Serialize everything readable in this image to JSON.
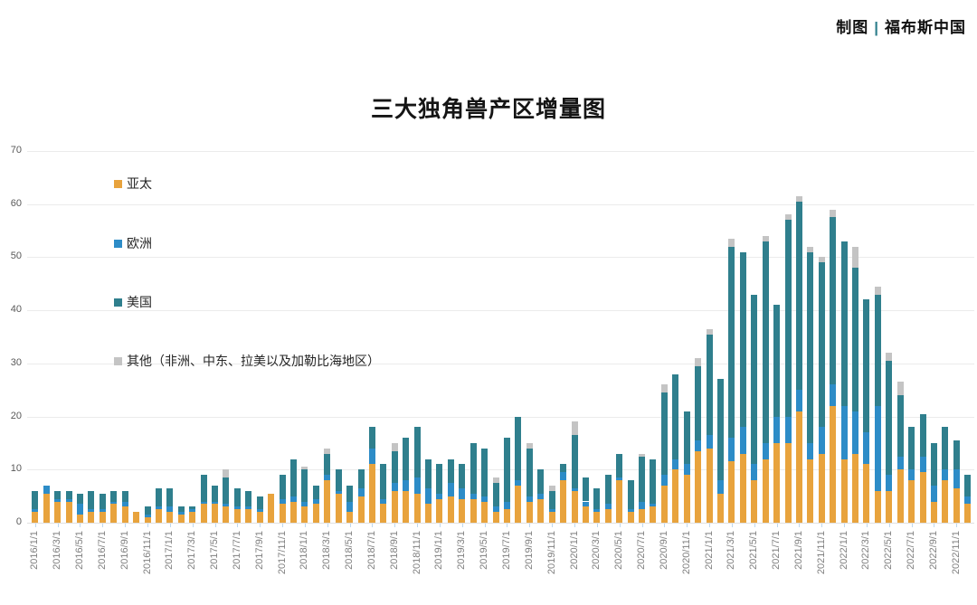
{
  "header": {
    "credit_prefix": "制图",
    "credit_separator": "|",
    "credit_brand": "福布斯中国",
    "separator_color": "#2F7F8D"
  },
  "title": "三大独角兽产区增量图",
  "chart_data": {
    "type": "bar",
    "stacked": true,
    "title": "三大独角兽产区增量图",
    "grid": true,
    "legend_position": "left-vertical",
    "ylim": [
      0,
      70
    ],
    "yticks": [
      0,
      10,
      20,
      30,
      40,
      50,
      60,
      70
    ],
    "x_ticks_every": 2,
    "x": [
      "2016/1/1",
      "2016/2/1",
      "2016/3/1",
      "2016/4/1",
      "2016/5/1",
      "2016/6/1",
      "2016/7/1",
      "2016/8/1",
      "2016/9/1",
      "2016/10/1",
      "2016/11/1",
      "2016/12/1",
      "2017/1/1",
      "2017/2/1",
      "2017/3/1",
      "2017/4/1",
      "2017/5/1",
      "2017/6/1",
      "2017/7/1",
      "2017/8/1",
      "2017/9/1",
      "2017/10/1",
      "2017/11/1",
      "2017/12/1",
      "2018/1/1",
      "2018/2/1",
      "2018/3/1",
      "2018/4/1",
      "2018/5/1",
      "2018/6/1",
      "2018/7/1",
      "2018/8/1",
      "2018/9/1",
      "2018/10/1",
      "2018/11/1",
      "2018/12/1",
      "2019/1/1",
      "2019/2/1",
      "2019/3/1",
      "2019/4/1",
      "2019/5/1",
      "2019/6/1",
      "2019/7/1",
      "2019/8/1",
      "2019/9/1",
      "2019/10/1",
      "2019/11/1",
      "2019/12/1",
      "2020/1/1",
      "2020/2/1",
      "2020/3/1",
      "2020/4/1",
      "2020/5/1",
      "2020/6/1",
      "2020/7/1",
      "2020/8/1",
      "2020/9/1",
      "2020/10/1",
      "2020/11/1",
      "2020/12/1",
      "2021/1/1",
      "2021/2/1",
      "2021/3/1",
      "2021/4/1",
      "2021/5/1",
      "2021/6/1",
      "2021/7/1",
      "2021/8/1",
      "2021/9/1",
      "2021/10/1",
      "2021/11/1",
      "2021/12/1",
      "2022/1/1",
      "2022/2/1",
      "2022/3/1",
      "2022/4/1",
      "2022/5/1",
      "2022/6/1",
      "2022/7/1",
      "2022/8/1",
      "2022/9/1",
      "2022/10/1",
      "2022/11/1",
      "2022/12/1"
    ],
    "series": [
      {
        "key": "asia-pacific",
        "name": "亚太",
        "color": "#E8A33D",
        "values": [
          2,
          5.5,
          4,
          4,
          1.5,
          2,
          2,
          3.5,
          3,
          2,
          1,
          2.5,
          2,
          1.5,
          2,
          3.5,
          3.5,
          3,
          2.5,
          2.5,
          2,
          5.5,
          3.5,
          4,
          3,
          3.5,
          8,
          5.5,
          2,
          5,
          11,
          3.5,
          6,
          6,
          5.5,
          3.5,
          4.5,
          5,
          4.5,
          4.5,
          4,
          2,
          2.5,
          7,
          4,
          4.5,
          2,
          8,
          6,
          3,
          2,
          2.5,
          8,
          2,
          2.5,
          3,
          7,
          10,
          9,
          13.5,
          14,
          5.5,
          11.5,
          13,
          8,
          12,
          15,
          15,
          21,
          12,
          13,
          22,
          12,
          13,
          11,
          6,
          6,
          10,
          8,
          9.5,
          4,
          8,
          6.5,
          3.5
        ]
      },
      {
        "key": "europe",
        "name": "欧洲",
        "color": "#2D8CC7",
        "values": [
          0.5,
          1.5,
          0.5,
          0.5,
          2,
          0.5,
          0.5,
          0.5,
          1,
          0,
          0.5,
          0.5,
          1,
          0.5,
          0.5,
          0.5,
          0.5,
          0.5,
          0.5,
          0.5,
          0.5,
          0,
          1,
          1,
          1,
          1,
          1,
          0.5,
          2,
          1.5,
          3,
          1,
          1.5,
          2,
          3,
          3,
          1,
          2.5,
          2,
          1,
          1,
          1,
          1.5,
          1,
          1,
          1,
          0.5,
          1.5,
          0.5,
          1,
          0.5,
          1,
          0.5,
          0.5,
          1.5,
          0.5,
          2,
          2,
          2,
          2,
          2.5,
          2.5,
          4.5,
          5,
          3,
          3,
          5,
          5,
          4,
          3,
          5,
          4,
          10,
          8,
          6,
          16,
          3,
          2.5,
          2,
          3,
          3,
          2,
          3.5,
          1.5
        ]
      },
      {
        "key": "united-states",
        "name": "美国",
        "color": "#2F7F8D",
        "values": [
          3.5,
          0,
          1.5,
          1.5,
          2,
          3.5,
          3,
          2,
          2,
          0,
          1.5,
          3.5,
          3.5,
          1,
          0.5,
          5,
          3,
          5,
          3.5,
          3,
          2.5,
          0,
          4.5,
          7,
          6,
          2.5,
          4,
          4,
          3,
          3.5,
          4,
          6.5,
          6,
          8,
          9.5,
          5.5,
          5.5,
          4.5,
          4.5,
          9.5,
          9,
          4.5,
          12,
          12,
          9,
          4.5,
          3.5,
          1.5,
          10,
          4.5,
          4,
          5.5,
          4.5,
          5.5,
          8.5,
          8.5,
          15.5,
          16,
          10,
          14,
          19,
          19,
          36,
          33,
          32,
          38,
          21,
          37,
          35.5,
          36,
          31,
          31.5,
          31,
          27,
          25,
          21,
          21.5,
          11.5,
          8,
          8,
          8,
          8,
          5.5,
          4
        ]
      },
      {
        "key": "other-regions",
        "name": "其他（非洲、中东、拉美以及加勒比海地区）",
        "color": "#C4C4C4",
        "values": [
          0,
          0,
          0,
          0,
          0,
          0,
          0,
          0,
          0,
          0,
          0,
          0,
          0,
          0,
          0,
          0,
          0,
          1.5,
          0,
          0,
          0,
          0,
          0,
          0,
          0.5,
          0,
          1,
          0,
          0,
          0,
          0,
          0,
          1.5,
          0,
          0,
          0,
          0,
          0,
          0,
          0,
          0,
          1,
          0,
          0,
          1,
          0,
          1,
          0,
          2.5,
          0,
          0,
          0,
          0,
          0,
          0.5,
          0,
          1.5,
          0,
          0,
          1.5,
          1,
          0,
          1.5,
          0,
          0,
          1,
          0,
          1,
          1,
          1,
          1,
          1.5,
          0,
          4,
          0,
          1.5,
          1.5,
          2.5,
          0,
          0,
          0,
          0,
          0,
          0
        ]
      }
    ]
  }
}
